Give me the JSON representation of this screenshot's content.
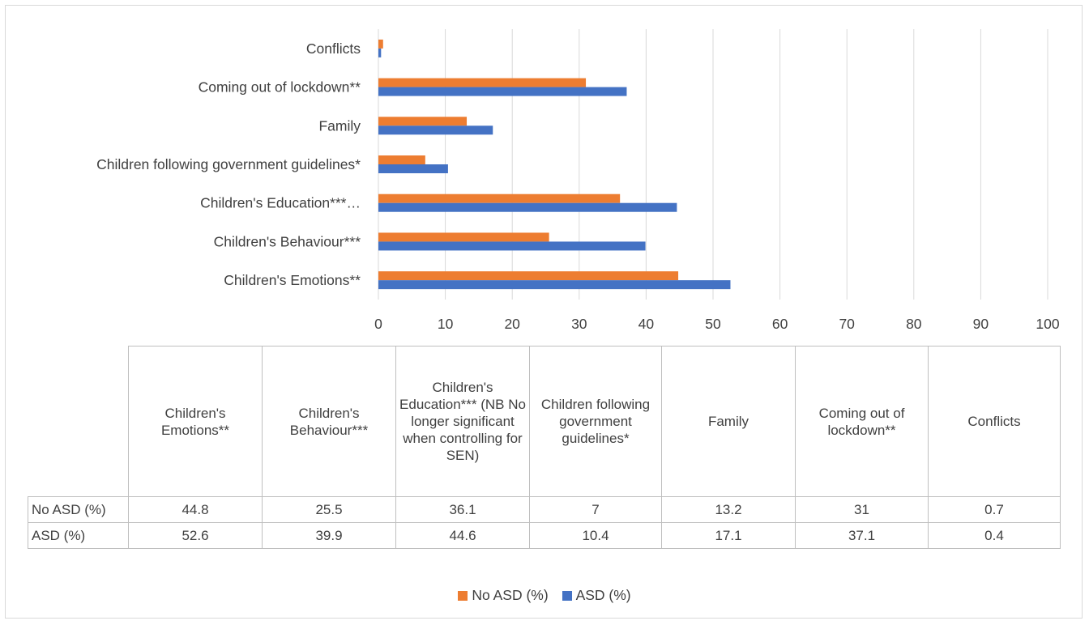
{
  "colors": {
    "no_asd": "#ED7D31",
    "asd": "#4472C4",
    "grid": "#d9d9d9",
    "text": "#404040"
  },
  "chart_data": {
    "type": "bar",
    "orientation": "horizontal",
    "categories": [
      "Children's Emotions**",
      "Children's Behaviour***",
      "Children's Education***…",
      "Children following government guidelines*",
      "Family",
      "Coming out of lockdown**",
      "Conflicts"
    ],
    "series": [
      {
        "name": "No ASD (%)",
        "values": [
          44.8,
          25.5,
          36.1,
          7,
          13.2,
          31,
          0.7
        ]
      },
      {
        "name": "ASD (%)",
        "values": [
          52.6,
          39.9,
          44.6,
          10.4,
          17.1,
          37.1,
          0.4
        ]
      }
    ],
    "xlim": [
      0,
      100
    ],
    "xticks": [
      "0",
      "10",
      "20",
      "30",
      "40",
      "50",
      "60",
      "70",
      "80",
      "90",
      "100"
    ],
    "grid": true,
    "legend": "bottom",
    "data_table": {
      "headers": [
        "Children's Emotions**",
        "Children's Behaviour***",
        "Children's Education*** (NB No longer significant when controlling for SEN)",
        "Children following government guidelines*",
        "Family",
        "Coming out of lockdown**",
        "Conflicts"
      ],
      "rows": [
        {
          "label": "No ASD (%)",
          "values": [
            "44.8",
            "25.5",
            "36.1",
            "7",
            "13.2",
            "31",
            "0.7"
          ]
        },
        {
          "label": "ASD (%)",
          "values": [
            "52.6",
            "39.9",
            "44.6",
            "10.4",
            "17.1",
            "37.1",
            "0.4"
          ]
        }
      ]
    }
  }
}
